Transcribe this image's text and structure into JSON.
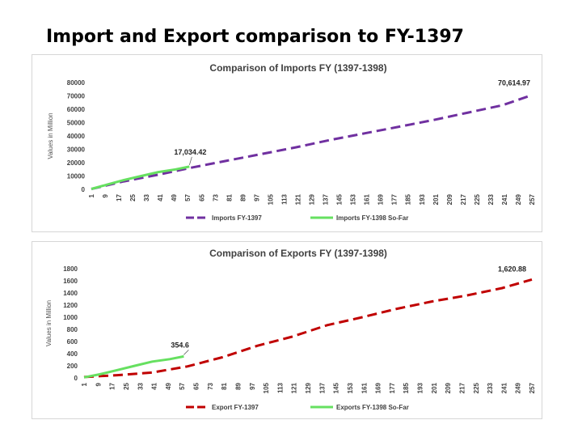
{
  "slide_title": "Import and Export comparison to FY-1397",
  "chart_data": [
    {
      "type": "line",
      "title": "Comparison of Imports FY (1397-1398)",
      "ylabel": "Values in Million",
      "xlabel": "",
      "ylim": [
        0,
        80000
      ],
      "yticks": [
        0,
        10000,
        20000,
        30000,
        40000,
        50000,
        60000,
        70000,
        80000
      ],
      "xlim": [
        1,
        257
      ],
      "xticks": [
        "1",
        "9",
        "17",
        "25",
        "33",
        "41",
        "49",
        "57",
        "65",
        "73",
        "81",
        "89",
        "97",
        "105",
        "113",
        "121",
        "129",
        "137",
        "145",
        "153",
        "161",
        "169",
        "177",
        "185",
        "193",
        "201",
        "209",
        "217",
        "225",
        "233",
        "241",
        "249",
        "257"
      ],
      "legend_position": "bottom",
      "grid": false,
      "series": [
        {
          "name": "Imports FY-1397",
          "color": "#7030A0",
          "style": "dashed",
          "x": [
            1,
            20,
            40,
            60,
            80,
            100,
            120,
            140,
            160,
            180,
            200,
            220,
            240,
            257
          ],
          "y": [
            300,
            6000,
            11000,
            16500,
            21500,
            26500,
            31500,
            37000,
            42000,
            47000,
            52000,
            57500,
            63000,
            70614.97
          ]
        },
        {
          "name": "Imports FY-1398 So-Far",
          "color": "#66E060",
          "style": "solid",
          "x": [
            1,
            10,
            20,
            30,
            40,
            50,
            58
          ],
          "y": [
            300,
            3500,
            7000,
            10000,
            13000,
            15000,
            17034.42
          ]
        }
      ],
      "annotations": [
        {
          "text": "70,614.97",
          "x": 257,
          "y": 70614.97
        },
        {
          "text": "17,034.42",
          "x": 58,
          "y": 17034.42
        }
      ]
    },
    {
      "type": "line",
      "title": "Comparison of Exports FY (1397-1398)",
      "ylabel": "Values in Million",
      "xlabel": "",
      "ylim": [
        0,
        1800
      ],
      "yticks": [
        0,
        200,
        400,
        600,
        800,
        1000,
        1200,
        1400,
        1600,
        1800
      ],
      "xlim": [
        1,
        257
      ],
      "xticks": [
        "1",
        "9",
        "17",
        "25",
        "33",
        "41",
        "49",
        "57",
        "65",
        "73",
        "81",
        "89",
        "97",
        "105",
        "113",
        "121",
        "129",
        "137",
        "145",
        "153",
        "161",
        "169",
        "177",
        "185",
        "193",
        "201",
        "209",
        "217",
        "225",
        "233",
        "241",
        "249",
        "257"
      ],
      "legend_position": "bottom",
      "grid": false,
      "series": [
        {
          "name": "Export FY-1397",
          "color": "#C00000",
          "style": "dashed",
          "x": [
            1,
            20,
            40,
            60,
            80,
            100,
            120,
            140,
            160,
            180,
            200,
            220,
            240,
            257
          ],
          "y": [
            15,
            45,
            90,
            190,
            340,
            530,
            680,
            870,
            1000,
            1140,
            1260,
            1360,
            1480,
            1620.88
          ]
        },
        {
          "name": "Exports FY-1398 So-Far",
          "color": "#66E060",
          "style": "solid",
          "x": [
            1,
            10,
            20,
            30,
            40,
            50,
            58
          ],
          "y": [
            10,
            60,
            130,
            200,
            270,
            310,
            354.6
          ]
        }
      ],
      "annotations": [
        {
          "text": "1,620.88",
          "x": 257,
          "y": 1620.88
        },
        {
          "text": "354.6",
          "x": 58,
          "y": 354.6
        }
      ]
    }
  ]
}
